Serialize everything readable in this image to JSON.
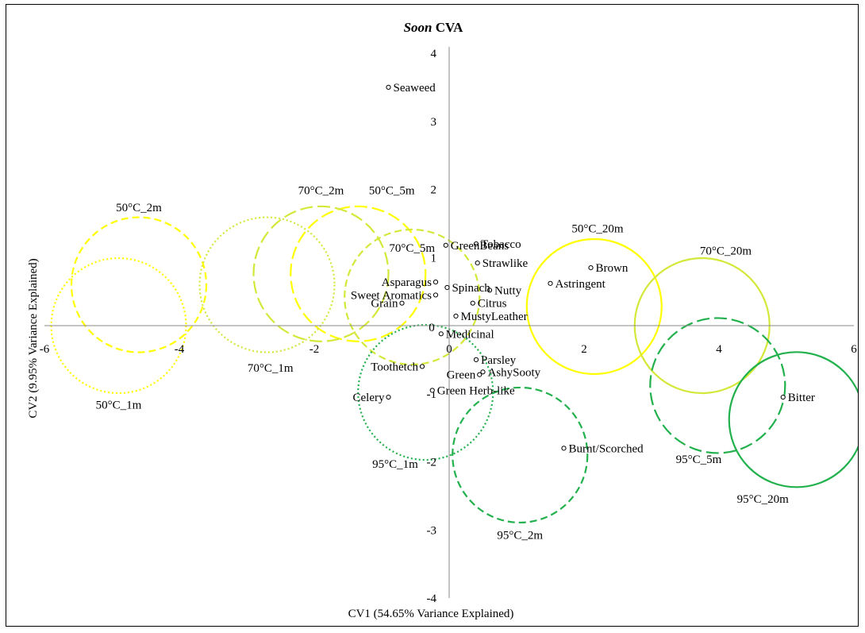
{
  "chart_data": {
    "type": "scatter",
    "title_prefix": "Soon",
    "title_suffix": " CVA",
    "xlabel": "CV1 (54.65% Variance Explained)",
    "ylabel": "CV2 (9.95% Variance Explained)",
    "xlim": [
      -6,
      6
    ],
    "ylim": [
      -4,
      4
    ],
    "x_ticks": [
      -6,
      -4,
      -2,
      0,
      2,
      4,
      6
    ],
    "y_ticks": [
      -4,
      -3,
      -2,
      -1,
      0,
      1,
      2,
      3,
      4
    ],
    "grid": false,
    "legend": "none",
    "attributes": [
      {
        "label": "Seaweed",
        "x": -0.9,
        "y": 3.5
      },
      {
        "label": "Tobacco",
        "x": 0.4,
        "y": 1.2
      },
      {
        "label": "GreenBeans",
        "x": -0.05,
        "y": 1.18
      },
      {
        "label": "Strawlike",
        "x": 0.42,
        "y": 0.92
      },
      {
        "label": "Brown",
        "x": 2.1,
        "y": 0.85
      },
      {
        "label": "Astringent",
        "x": 1.5,
        "y": 0.62
      },
      {
        "label": "Asparagus",
        "x": -0.2,
        "y": 0.64
      },
      {
        "label": "Spinach",
        "x": -0.03,
        "y": 0.56
      },
      {
        "label": "Nutty",
        "x": 0.6,
        "y": 0.52
      },
      {
        "label": "Sweet Aromatics",
        "x": -0.2,
        "y": 0.45
      },
      {
        "label": "Citrus",
        "x": 0.35,
        "y": 0.33
      },
      {
        "label": "Grain",
        "x": -0.7,
        "y": 0.33
      },
      {
        "label": "MustyLeather",
        "x": 0.1,
        "y": 0.14
      },
      {
        "label": "Medicinal",
        "x": -0.12,
        "y": -0.12
      },
      {
        "label": "Parsley",
        "x": 0.4,
        "y": -0.5
      },
      {
        "label": "Toothetch",
        "x": -0.4,
        "y": -0.6
      },
      {
        "label": "Green",
        "x": 0.45,
        "y": -0.72
      },
      {
        "label": "AshySooty",
        "x": 0.5,
        "y": -0.68
      },
      {
        "label": "Green Herb-like",
        "x": -0.25,
        "y": -0.95
      },
      {
        "label": "Celery",
        "x": -0.9,
        "y": -1.05
      },
      {
        "label": "Burnt/Scorched",
        "x": 1.7,
        "y": -1.8
      },
      {
        "label": "Bitter",
        "x": 4.95,
        "y": -1.05
      }
    ],
    "samples": [
      {
        "label": "50°C_1m",
        "x": -4.9,
        "y": 0.0,
        "r": 0.97,
        "color": "#FFFF00",
        "style": "dotted"
      },
      {
        "label": "50°C_2m",
        "x": -4.6,
        "y": 0.6,
        "r": 0.97,
        "color": "#FFFF00",
        "style": "dashed"
      },
      {
        "label": "50°C_5m",
        "x": -1.35,
        "y": 0.76,
        "r": 0.97,
        "color": "#FFFF00",
        "style": "longdash"
      },
      {
        "label": "50°C_20m",
        "x": 2.15,
        "y": 0.28,
        "r": 0.97,
        "color": "#FFFF00",
        "style": "solid"
      },
      {
        "label": "70°C_1m",
        "x": -2.7,
        "y": 0.6,
        "r": 0.97,
        "color": "#D4E83A",
        "style": "dotted"
      },
      {
        "label": "70°C_2m",
        "x": -1.9,
        "y": 0.76,
        "r": 0.97,
        "color": "#D4E83A",
        "style": "longdash"
      },
      {
        "label": "70°C_5m",
        "x": -0.55,
        "y": 0.42,
        "r": 0.97,
        "color": "#D4E83A",
        "style": "dashed"
      },
      {
        "label": "70°C_20m",
        "x": 3.75,
        "y": 0.0,
        "r": 0.97,
        "color": "#D4E83A",
        "style": "solid"
      },
      {
        "label": "95°C_1m",
        "x": -0.35,
        "y": -0.98,
        "r": 0.97,
        "color": "#22B14C",
        "style": "dotted"
      },
      {
        "label": "95°C_2m",
        "x": 1.05,
        "y": -1.9,
        "r": 0.97,
        "color": "#22B14C",
        "style": "dashed"
      },
      {
        "label": "95°C_5m",
        "x": 3.98,
        "y": -0.88,
        "r": 0.97,
        "color": "#22B14C",
        "style": "longdash"
      },
      {
        "label": "95°C_20m",
        "x": 5.15,
        "y": -1.38,
        "r": 0.97,
        "color": "#22B14C",
        "style": "solid"
      }
    ]
  }
}
